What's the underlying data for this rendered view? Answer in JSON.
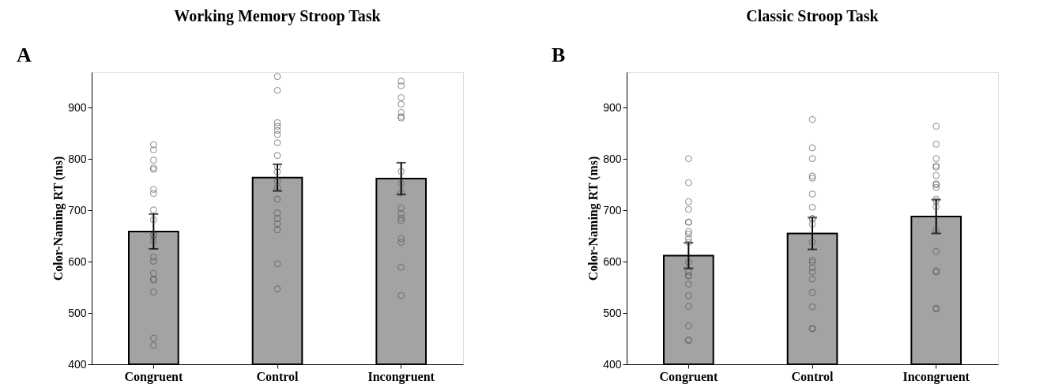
{
  "chart_data": [
    {
      "type": "bar",
      "title": "Working Memory Stroop Task",
      "ylabel": "Color-Naming RT (ms)",
      "annotations": [
        "A"
      ],
      "categories": [
        "Congruent",
        "Control",
        "Incongruent"
      ],
      "ylim": [
        400,
        970
      ],
      "yticks": [
        400,
        500,
        600,
        700,
        800,
        900
      ],
      "grid": false,
      "series": [
        {
          "type": "bar",
          "color": "#a3a3a3",
          "values": [
            659,
            764,
            762
          ],
          "errors": [
            34,
            26,
            31
          ]
        },
        {
          "type": "scatter",
          "marker": "circle",
          "color": "#555555",
          "x": [
            "Congruent",
            "Congruent",
            "Congruent",
            "Congruent",
            "Congruent",
            "Congruent",
            "Congruent",
            "Congruent",
            "Congruent",
            "Congruent",
            "Congruent",
            "Congruent",
            "Congruent",
            "Congruent",
            "Congruent",
            "Congruent",
            "Congruent",
            "Congruent",
            "Congruent",
            "Congruent",
            "Control",
            "Control",
            "Control",
            "Control",
            "Control",
            "Control",
            "Control",
            "Control",
            "Control",
            "Control",
            "Control",
            "Control",
            "Control",
            "Control",
            "Control",
            "Control",
            "Control",
            "Control",
            "Control",
            "Incongruent",
            "Incongruent",
            "Incongruent",
            "Incongruent",
            "Incongruent",
            "Incongruent",
            "Incongruent",
            "Incongruent",
            "Incongruent",
            "Incongruent",
            "Incongruent",
            "Incongruent",
            "Incongruent",
            "Incongruent",
            "Incongruent",
            "Incongruent",
            "Incongruent",
            "Incongruent"
          ],
          "values": [
            828,
            818,
            798,
            783,
            780,
            741,
            733,
            701,
            682,
            652,
            652,
            641,
            609,
            601,
            577,
            566,
            564,
            541,
            451,
            437,
            961,
            934,
            871,
            864,
            856,
            848,
            832,
            807,
            775,
            757,
            745,
            722,
            695,
            684,
            674,
            662,
            596,
            547,
            785,
            952,
            943,
            920,
            907,
            891,
            883,
            880,
            776,
            752,
            734,
            705,
            693,
            685,
            680,
            645,
            638,
            589,
            534
          ]
        }
      ]
    },
    {
      "type": "bar",
      "title": "Classic Stroop Task",
      "ylabel": "Color-Naming RT (ms)",
      "annotations": [
        "B"
      ],
      "categories": [
        "Congruent",
        "Control",
        "Incongruent"
      ],
      "ylim": [
        400,
        970
      ],
      "yticks": [
        400,
        500,
        600,
        700,
        800,
        900
      ],
      "grid": false,
      "series": [
        {
          "type": "bar",
          "color": "#a3a3a3",
          "values": [
            612,
            655,
            688
          ],
          "errors": [
            25,
            31,
            33
          ]
        },
        {
          "type": "scatter",
          "marker": "circle",
          "color": "#555555",
          "x": [
            "Congruent",
            "Congruent",
            "Congruent",
            "Congruent",
            "Congruent",
            "Congruent",
            "Congruent",
            "Congruent",
            "Congruent",
            "Congruent",
            "Congruent",
            "Congruent",
            "Congruent",
            "Congruent",
            "Congruent",
            "Congruent",
            "Congruent",
            "Congruent",
            "Congruent",
            "Congruent",
            "Control",
            "Control",
            "Control",
            "Control",
            "Control",
            "Control",
            "Control",
            "Control",
            "Control",
            "Control",
            "Control",
            "Control",
            "Control",
            "Control",
            "Control",
            "Control",
            "Control",
            "Control",
            "Control",
            "Control",
            "Incongruent",
            "Incongruent",
            "Incongruent",
            "Incongruent",
            "Incongruent",
            "Incongruent",
            "Incongruent",
            "Incongruent",
            "Incongruent",
            "Incongruent",
            "Incongruent",
            "Incongruent",
            "Incongruent",
            "Incongruent",
            "Incongruent",
            "Incongruent",
            "Incongruent",
            "Incongruent"
          ],
          "values": [
            801,
            754,
            717,
            702,
            677,
            677,
            659,
            654,
            645,
            638,
            599,
            580,
            573,
            572,
            556,
            534,
            513,
            475,
            447,
            447,
            877,
            822,
            801,
            767,
            763,
            732,
            706,
            684,
            684,
            673,
            638,
            603,
            599,
            588,
            580,
            566,
            540,
            512,
            470,
            469,
            864,
            829,
            801,
            787,
            784,
            768,
            752,
            750,
            745,
            722,
            718,
            707,
            661,
            620,
            582,
            580,
            509,
            508
          ]
        }
      ]
    }
  ]
}
